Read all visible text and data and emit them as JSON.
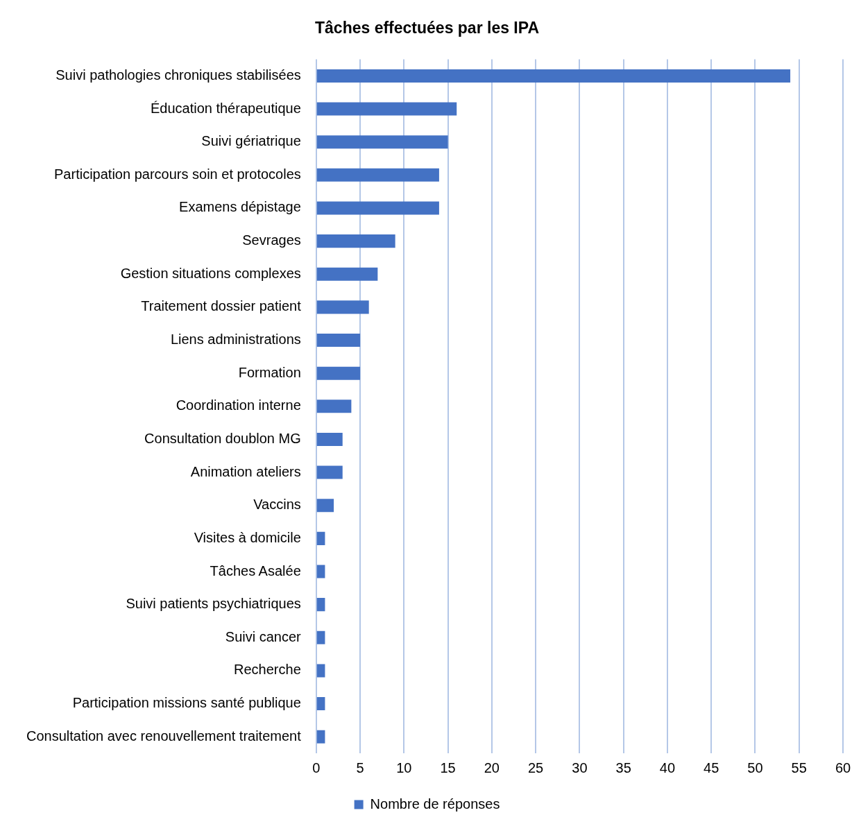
{
  "chart_data": {
    "type": "bar",
    "orientation": "horizontal",
    "title": "Tâches effectuées par les IPA",
    "categories": [
      "Suivi pathologies chroniques stabilisées",
      "Éducation thérapeutique",
      "Suivi gériatrique",
      "Participation parcours soin et protocoles",
      "Examens dépistage",
      "Sevrages",
      "Gestion situations complexes",
      "Traitement dossier patient",
      "Liens administrations",
      "Formation",
      "Coordination interne",
      "Consultation doublon MG",
      "Animation ateliers",
      "Vaccins",
      "Visites à domicile",
      "Tâches Asalée",
      "Suivi patients psychiatriques",
      "Suivi cancer",
      "Recherche",
      "Participation missions santé publique",
      "Consultation avec renouvellement traitement"
    ],
    "series": [
      {
        "name": "Nombre de réponses",
        "color": "#4472c4",
        "values": [
          54,
          16,
          15,
          14,
          14,
          9,
          7,
          6,
          5,
          5,
          4,
          3,
          3,
          2,
          1,
          1,
          1,
          1,
          1,
          1,
          1
        ]
      }
    ],
    "xlim": [
      0,
      60
    ],
    "xticks": [
      0,
      5,
      10,
      15,
      20,
      25,
      30,
      35,
      40,
      45,
      50,
      55,
      60
    ],
    "grid": "x",
    "legend": "bottom"
  }
}
